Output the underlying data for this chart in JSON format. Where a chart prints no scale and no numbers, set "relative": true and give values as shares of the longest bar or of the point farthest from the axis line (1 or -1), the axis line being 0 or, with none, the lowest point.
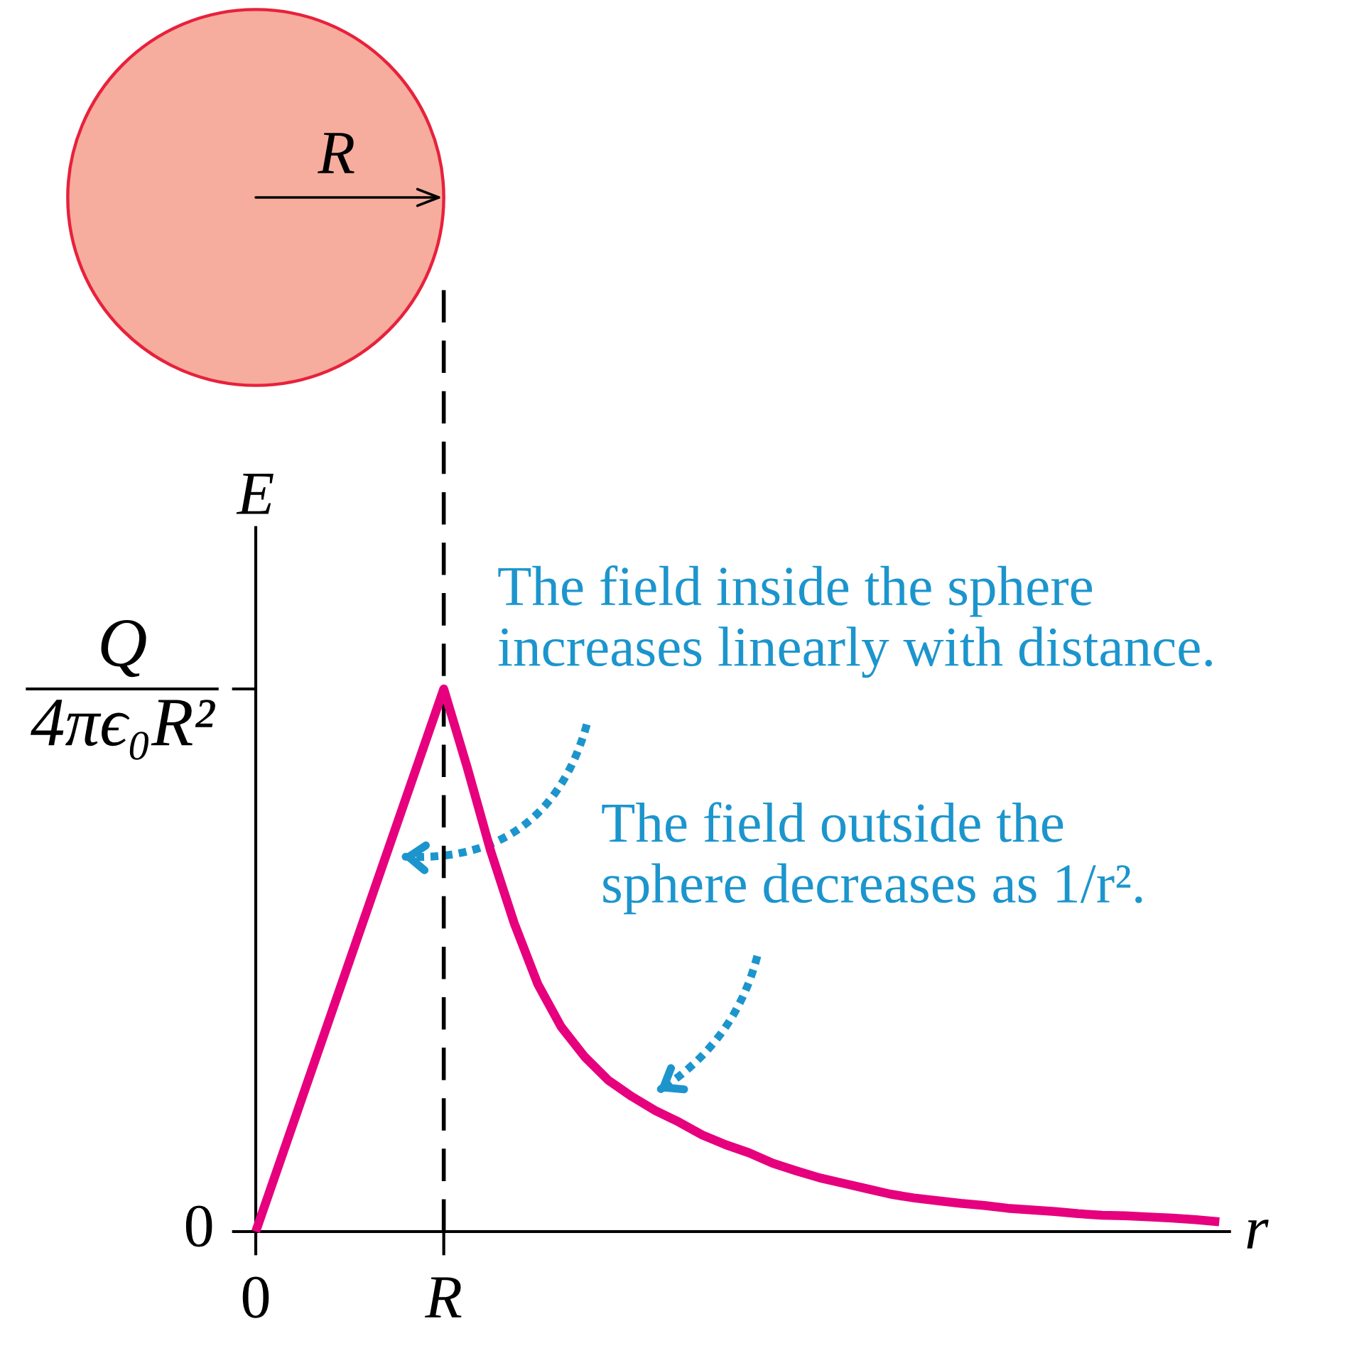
{
  "chart_data": {
    "type": "line",
    "relative": true,
    "xlabel": "r",
    "ylabel": "E",
    "categories": [
      "0",
      null,
      null,
      null,
      null,
      null,
      null,
      null,
      "R",
      null,
      null,
      null,
      null,
      null,
      null,
      null,
      null,
      null,
      null,
      null,
      null,
      null,
      null,
      null,
      null,
      null,
      null,
      null,
      null,
      null,
      null,
      null,
      null,
      null,
      null,
      null,
      null,
      null,
      null,
      null,
      null,
      null
    ],
    "series": [
      {
        "color": "#e6007e",
        "values": [
          0,
          0.125,
          0.25,
          0.375,
          0.5,
          0.625,
          0.75,
          0.875,
          1,
          0.855,
          0.701,
          0.568,
          0.456,
          0.377,
          0.322,
          0.279,
          0.249,
          0.223,
          0.202,
          0.178,
          0.16,
          0.145,
          0.126,
          0.112,
          0.099,
          0.089,
          0.079,
          0.069,
          0.062,
          0.057,
          0.052,
          0.048,
          0.043,
          0.04,
          0.037,
          0.033,
          0.03,
          0.029,
          0.027,
          0.025,
          0.022,
          0.018
        ]
      }
    ],
    "ref_lines": [
      {
        "axis": "x",
        "value": "R",
        "color": "#000000",
        "line_style": "dashed"
      }
    ],
    "annotations": [
      "R",
      "The field inside the sphere\nincreases linearly with distance.",
      "The field outside the\nsphere decreases as 1/r².",
      "Q\n4πϵ₀R²",
      "0"
    ]
  }
}
